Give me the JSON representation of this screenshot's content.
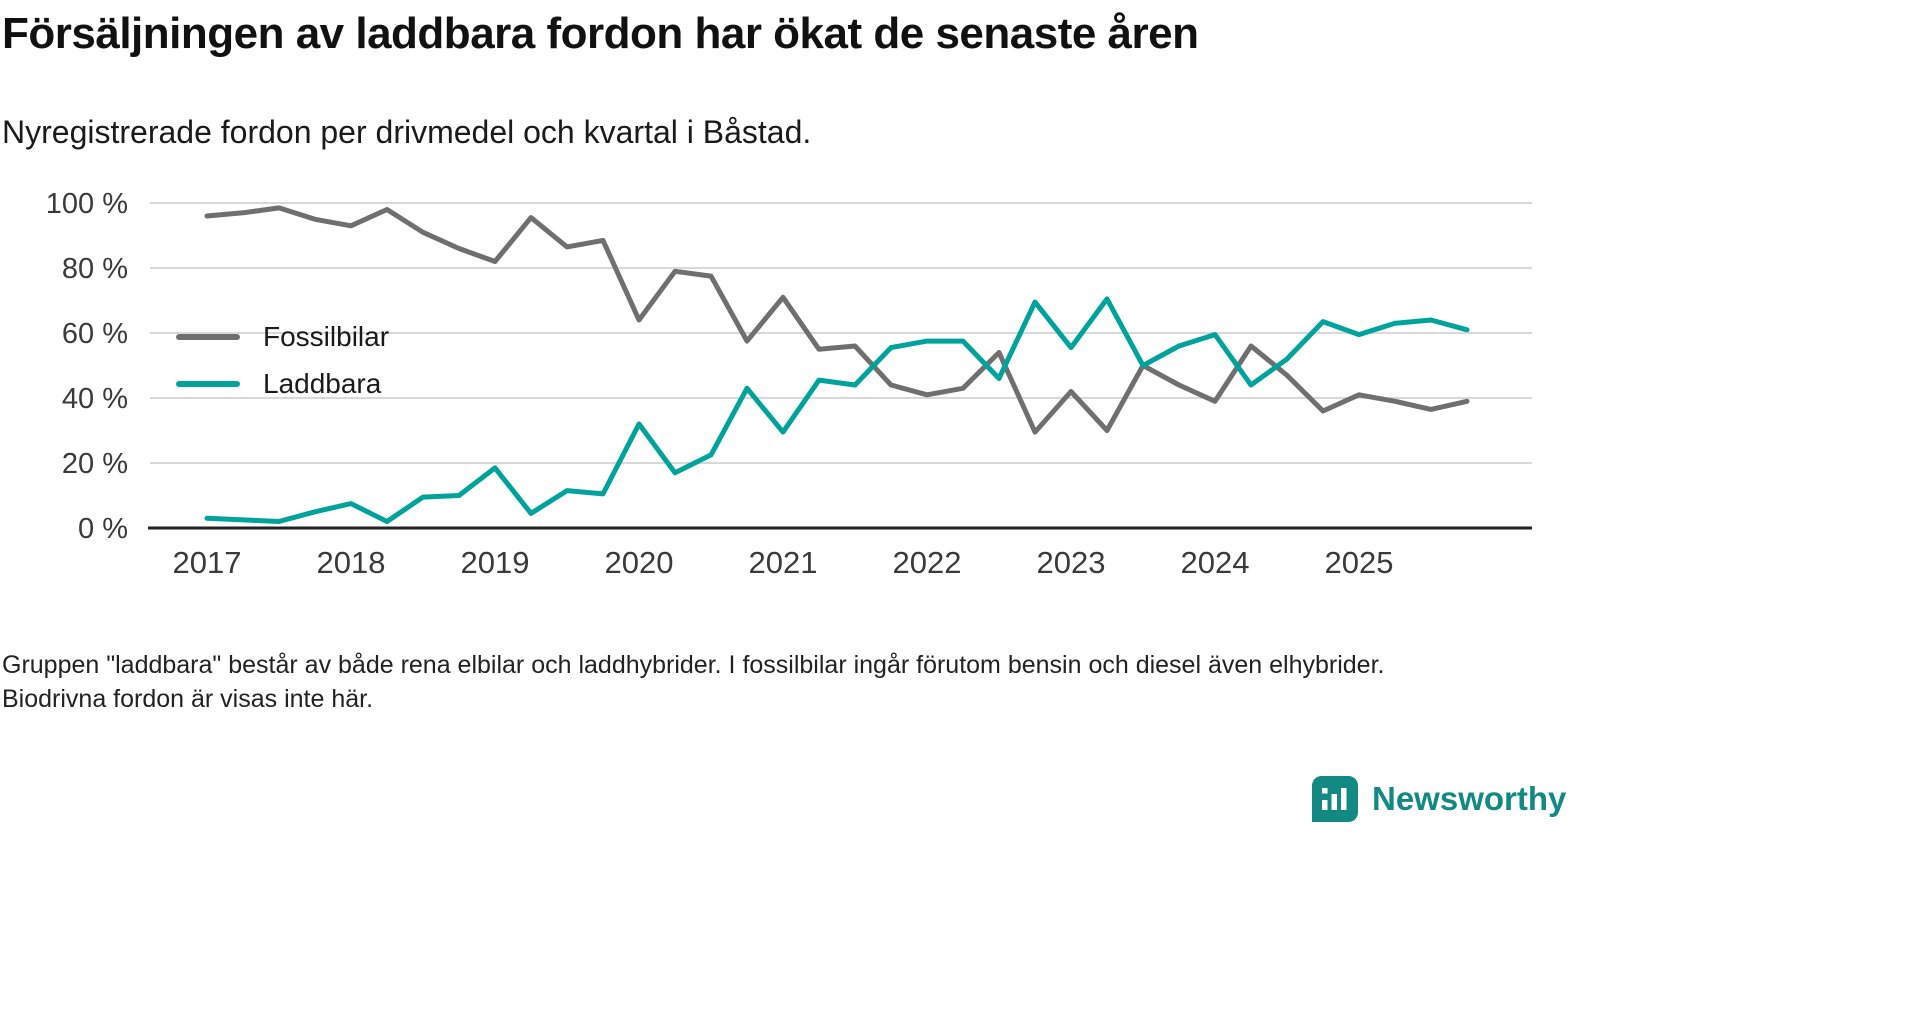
{
  "header": {
    "title": "Försäljningen av laddbara fordon har ökat de senaste åren",
    "subtitle": "Nyregistrerade fordon per drivmedel och kvartal i Båstad."
  },
  "note": "Gruppen \"laddbara\" består av både rena elbilar och laddhybrider. I fossilbilar ingår förutom bensin och diesel även elhybrider. Biodrivna fordon är visas inte här.",
  "branding": {
    "name": "Newsworthy",
    "color": "#128a83"
  },
  "chart_data": {
    "type": "line",
    "title": "Försäljningen av laddbara fordon har ökat de senaste åren",
    "subtitle": "Nyregistrerade fordon per drivmedel och kvartal i Båstad.",
    "x_unit": "quarter",
    "categories": [
      "2017 Q1",
      "2017 Q2",
      "2017 Q3",
      "2017 Q4",
      "2018 Q1",
      "2018 Q2",
      "2018 Q3",
      "2018 Q4",
      "2019 Q1",
      "2019 Q2",
      "2019 Q3",
      "2019 Q4",
      "2020 Q1",
      "2020 Q2",
      "2020 Q3",
      "2020 Q4",
      "2021 Q1",
      "2021 Q2",
      "2021 Q3",
      "2021 Q4",
      "2022 Q1",
      "2022 Q2",
      "2022 Q3",
      "2022 Q4",
      "2023 Q1",
      "2023 Q2",
      "2023 Q3",
      "2023 Q4",
      "2024 Q1",
      "2024 Q2",
      "2024 Q3",
      "2024 Q4",
      "2025 Q1",
      "2025 Q2",
      "2025 Q3",
      "2025 Q4"
    ],
    "series": [
      {
        "name": "Fossilbilar",
        "color": "#6f6f6f",
        "values": [
          96,
          97,
          98.5,
          95,
          93,
          98,
          91,
          86,
          82,
          95.5,
          86.5,
          88.5,
          64,
          79,
          77.5,
          57.5,
          71,
          55,
          56,
          44,
          41,
          43,
          54,
          29.5,
          42,
          30,
          50,
          44,
          39,
          56,
          47,
          36,
          41,
          39,
          36.5,
          39
        ]
      },
      {
        "name": "Laddbara",
        "color": "#00a39b",
        "values": [
          3,
          2.5,
          2,
          5,
          7.5,
          2,
          9.5,
          10,
          18.5,
          4.5,
          11.5,
          10.5,
          32,
          17,
          22.5,
          43,
          29.5,
          45.5,
          44,
          55.5,
          57.5,
          57.5,
          46,
          69.5,
          55.5,
          70.5,
          50,
          56,
          59.5,
          44,
          52,
          63.5,
          59.5,
          63,
          64,
          61
        ]
      }
    ],
    "xlabel": "",
    "ylabel": "",
    "ylim": [
      0,
      100
    ],
    "y_ticks": [
      0,
      20,
      40,
      60,
      80,
      100
    ],
    "y_tick_labels": [
      "0 %",
      "20 %",
      "40 %",
      "60 %",
      "80 %",
      "100 %"
    ],
    "x_tick_labels": [
      "2017",
      "2018",
      "2019",
      "2020",
      "2021",
      "2022",
      "2023",
      "2024",
      "2025"
    ],
    "grid": "horizontal",
    "legend_position": "inside-left",
    "colors": {
      "grid": "#d8d8d8",
      "axis": "#222222",
      "tick_text": "#3a3a3a"
    }
  }
}
